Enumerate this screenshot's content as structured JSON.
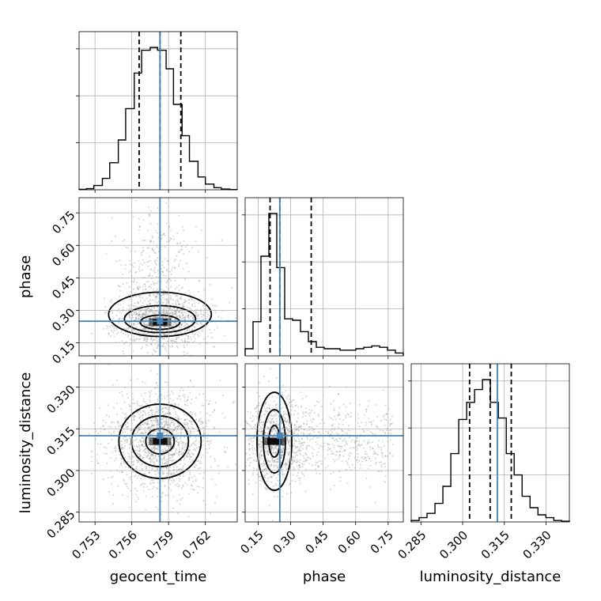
{
  "chart_data": {
    "type": "corner",
    "parameters": [
      "geocent_time",
      "phase",
      "luminosity_distance"
    ],
    "truths": [
      0.7583,
      0.25,
      0.3125
    ],
    "truth_color": "#4682b4",
    "grid": true,
    "axes": {
      "geocent_time": {
        "range": [
          0.7517,
          0.7646
        ],
        "ticks": [
          0.753,
          0.756,
          0.759,
          0.762
        ],
        "tick_labels": [
          "0.753",
          "0.756",
          "0.759",
          "0.762"
        ]
      },
      "phase": {
        "range": [
          0.09,
          0.82
        ],
        "ticks": [
          0.15,
          0.3,
          0.45,
          0.6,
          0.75
        ],
        "tick_labels": [
          "0.15",
          "0.30",
          "0.45",
          "0.60",
          "0.75"
        ]
      },
      "luminosity_distance": {
        "range": [
          0.2815,
          0.3384
        ],
        "ticks": [
          0.285,
          0.3,
          0.315,
          0.33
        ],
        "tick_labels": [
          "0.285",
          "0.300",
          "0.315",
          "0.330"
        ]
      }
    },
    "marginals": {
      "geocent_time": {
        "bin_edges": [
          0.7517,
          0.7523,
          0.7529,
          0.7536,
          0.7542,
          0.7549,
          0.7555,
          0.7562,
          0.7568,
          0.7575,
          0.7581,
          0.7588,
          0.7594,
          0.7601,
          0.7607,
          0.7614,
          0.762,
          0.7627,
          0.7633,
          0.764,
          0.7646
        ],
        "counts": [
          0.3,
          0.8,
          3,
          8,
          19,
          35,
          57,
          82,
          98,
          100,
          98,
          85,
          60,
          38,
          20,
          9,
          4,
          1.5,
          0.5,
          0.2
        ],
        "quantiles": [
          0.7566,
          0.7583,
          0.76
        ]
      },
      "phase": {
        "bin_edges": [
          0.09,
          0.1265,
          0.163,
          0.1995,
          0.236,
          0.2725,
          0.309,
          0.3455,
          0.382,
          0.4185,
          0.455,
          0.4915,
          0.528,
          0.5645,
          0.601,
          0.6375,
          0.674,
          0.7105,
          0.747,
          0.7835,
          0.82
        ],
        "counts": [
          0.05,
          0.24,
          0.7,
          1.0,
          0.62,
          0.26,
          0.25,
          0.17,
          0.1,
          0.06,
          0.05,
          0.05,
          0.04,
          0.04,
          0.05,
          0.06,
          0.07,
          0.06,
          0.04,
          0.02
        ],
        "quantiles": [
          0.205,
          0.25,
          0.395
        ]
      },
      "luminosity_distance": {
        "bin_edges": [
          0.2815,
          0.28435,
          0.2872,
          0.29005,
          0.2929,
          0.29575,
          0.2986,
          0.30145,
          0.3043,
          0.30715,
          0.31,
          0.31285,
          0.3157,
          0.31855,
          0.3214,
          0.32425,
          0.3271,
          0.32995,
          0.3328,
          0.33565,
          0.3384
        ],
        "counts": [
          1,
          3,
          6,
          13,
          25,
          48,
          72,
          84,
          93,
          100,
          84,
          73,
          48,
          33,
          18,
          10,
          5,
          3,
          1,
          0.5
        ],
        "quantiles": [
          0.3025,
          0.3099,
          0.3175
        ]
      }
    },
    "joint": {
      "phase|geocent_time": {
        "mode": [
          0.7583,
          0.245
        ]
      },
      "luminosity_distance|geocent_time": {
        "mode": [
          0.7583,
          0.3105
        ]
      },
      "luminosity_distance|phase": {
        "mode": [
          0.225,
          0.3105
        ]
      }
    }
  }
}
